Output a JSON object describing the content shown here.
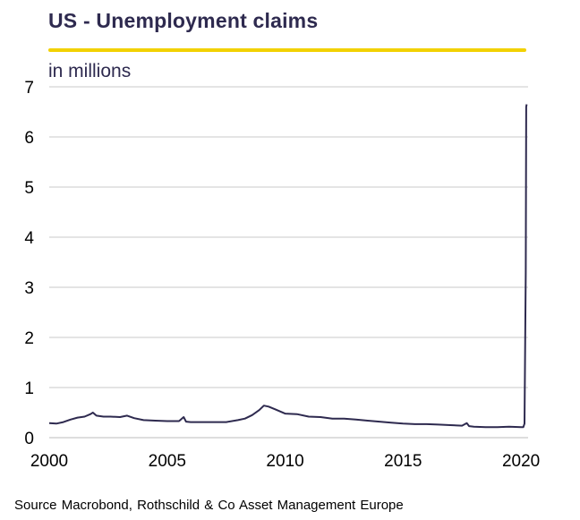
{
  "chart_data": {
    "type": "line",
    "title": "US - Unemployment  claims",
    "subtitle": "in millions",
    "xlabel": "",
    "ylabel": "",
    "ylim": [
      0,
      7
    ],
    "xlim": [
      2000,
      2020.3
    ],
    "x_ticks": [
      "2000",
      "2005",
      "2010",
      "2015",
      "2020"
    ],
    "y_ticks": [
      "0",
      "1",
      "2",
      "3",
      "4",
      "5",
      "6",
      "7"
    ],
    "grid": true,
    "legend": "none",
    "colors": {
      "line": "#2e2a4f",
      "title_rule": "#f2d100",
      "grid": "#c8c8c8"
    },
    "series": [
      {
        "x": [
          2000.0,
          2000.3,
          2000.6,
          2000.9,
          2001.2,
          2001.5,
          2001.75,
          2001.85,
          2002.0,
          2002.3,
          2002.6,
          2003.0,
          2003.3,
          2003.6,
          2004.0,
          2004.5,
          2005.0,
          2005.5,
          2005.7,
          2005.8,
          2006.0,
          2006.5,
          2007.0,
          2007.5,
          2008.0,
          2008.3,
          2008.6,
          2008.9,
          2009.1,
          2009.3,
          2009.6,
          2010.0,
          2010.5,
          2011.0,
          2011.5,
          2012.0,
          2012.5,
          2013.0,
          2013.5,
          2014.0,
          2014.5,
          2015.0,
          2015.5,
          2016.0,
          2016.5,
          2017.0,
          2017.5,
          2017.7,
          2017.8,
          2018.0,
          2018.5,
          2019.0,
          2019.5,
          2020.0,
          2020.1,
          2020.15,
          2020.2,
          2020.22,
          2020.24
        ],
        "values": [
          0.29,
          0.28,
          0.31,
          0.36,
          0.4,
          0.42,
          0.47,
          0.5,
          0.44,
          0.42,
          0.42,
          0.41,
          0.44,
          0.39,
          0.35,
          0.34,
          0.33,
          0.33,
          0.41,
          0.32,
          0.31,
          0.31,
          0.31,
          0.31,
          0.35,
          0.38,
          0.45,
          0.55,
          0.64,
          0.62,
          0.56,
          0.48,
          0.47,
          0.42,
          0.41,
          0.38,
          0.38,
          0.36,
          0.34,
          0.32,
          0.3,
          0.28,
          0.27,
          0.27,
          0.26,
          0.25,
          0.24,
          0.29,
          0.23,
          0.22,
          0.21,
          0.21,
          0.22,
          0.21,
          0.21,
          0.28,
          3.3,
          6.6,
          6.65
        ]
      }
    ]
  },
  "footer": {
    "source": "Source Macrobond,  Rothschild & Co Asset Management  Europe"
  }
}
